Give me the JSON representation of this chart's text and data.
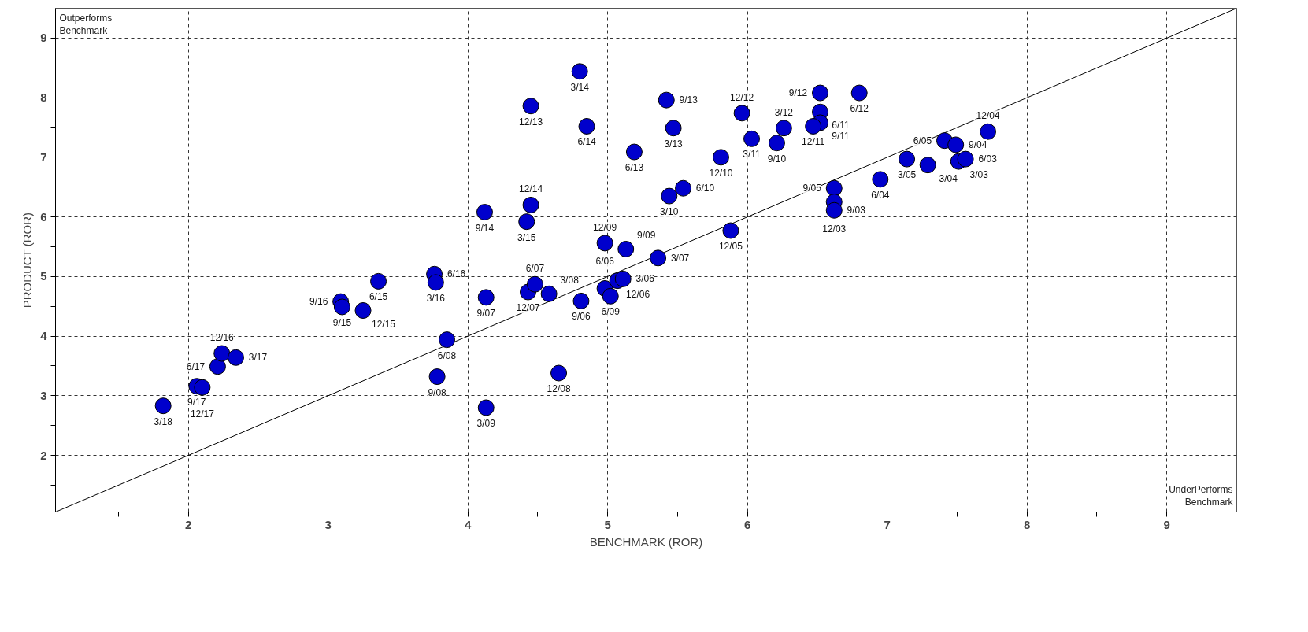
{
  "chart_data": {
    "type": "scatter",
    "xlabel": "BENCHMARK (ROR)",
    "ylabel": "PRODUCT (ROR)",
    "annotations": [
      "Outperforms\nBenchmark",
      "UnderPerforms\nBenchmark",
      {
        "text": "3/18",
        "x": 1.82,
        "y": 2.83
      },
      {
        "text": "9/17",
        "x": 2.06,
        "y": 3.16
      },
      {
        "text": "12/17",
        "x": 2.1,
        "y": 3.14
      },
      {
        "text": "6/17",
        "x": 2.21,
        "y": 3.49
      },
      {
        "text": "12/16",
        "x": 2.24,
        "y": 3.71
      },
      {
        "text": "3/17",
        "x": 2.34,
        "y": 3.64
      },
      {
        "text": "9/16",
        "x": 3.09,
        "y": 4.58
      },
      {
        "text": "9/15",
        "x": 3.1,
        "y": 4.49
      },
      {
        "text": "12/15",
        "x": 3.25,
        "y": 4.43
      },
      {
        "text": "6/15",
        "x": 3.36,
        "y": 4.92
      },
      {
        "text": "6/16",
        "x": 3.76,
        "y": 5.04
      },
      {
        "text": "3/16",
        "x": 3.77,
        "y": 4.9
      },
      {
        "text": "9/07",
        "x": 4.13,
        "y": 4.65
      },
      {
        "text": "12/07",
        "x": 4.43,
        "y": 4.74
      },
      {
        "text": "6/07",
        "x": 4.48,
        "y": 4.87
      },
      {
        "text": "3/08",
        "x": 4.58,
        "y": 4.71
      },
      {
        "text": "9/06",
        "x": 4.81,
        "y": 4.59
      },
      {
        "text": "6/08",
        "x": 3.85,
        "y": 3.94
      },
      {
        "text": "9/08",
        "x": 3.78,
        "y": 3.32
      },
      {
        "text": "12/08",
        "x": 4.65,
        "y": 3.38
      },
      {
        "text": "3/09",
        "x": 4.13,
        "y": 2.8
      },
      {
        "text": "6/06",
        "x": 4.98,
        "y": 4.8
      },
      {
        "text": "6/09",
        "x": 5.02,
        "y": 4.67
      },
      {
        "text": "12/06",
        "x": 5.07,
        "y": 4.93
      },
      {
        "text": "3/06",
        "x": 5.11,
        "y": 4.96
      },
      {
        "text": "3/07",
        "x": 5.36,
        "y": 5.31
      },
      {
        "text": "3/14",
        "x": 4.8,
        "y": 8.44
      },
      {
        "text": "12/13",
        "x": 4.45,
        "y": 7.86
      },
      {
        "text": "6/14",
        "x": 4.85,
        "y": 7.52
      },
      {
        "text": "9/13",
        "x": 5.42,
        "y": 7.96
      },
      {
        "text": "3/13",
        "x": 5.47,
        "y": 7.49
      },
      {
        "text": "6/13",
        "x": 5.19,
        "y": 7.09
      },
      {
        "text": "12/12",
        "x": 5.96,
        "y": 7.74
      },
      {
        "text": "3/11",
        "x": 6.03,
        "y": 7.31
      },
      {
        "text": "3/12",
        "x": 6.26,
        "y": 7.49
      },
      {
        "text": "9/10",
        "x": 6.21,
        "y": 7.24
      },
      {
        "text": "12/10",
        "x": 5.81,
        "y": 7.0
      },
      {
        "text": "6/10",
        "x": 5.54,
        "y": 6.48
      },
      {
        "text": "3/10",
        "x": 5.44,
        "y": 6.35
      },
      {
        "text": "9/14",
        "x": 4.12,
        "y": 6.08
      },
      {
        "text": "12/14",
        "x": 4.45,
        "y": 6.2
      },
      {
        "text": "3/15",
        "x": 4.42,
        "y": 5.92
      },
      {
        "text": "12/05",
        "x": 5.88,
        "y": 5.77
      },
      {
        "text": "12/09",
        "x": 4.98,
        "y": 5.56
      },
      {
        "text": "9/09",
        "x": 5.13,
        "y": 5.46
      },
      {
        "text": "9/12",
        "x": 6.52,
        "y": 8.08
      },
      {
        "text": "6/12",
        "x": 6.8,
        "y": 8.08
      },
      {
        "text": "6/11",
        "x": 6.52,
        "y": 7.76
      },
      {
        "text": "9/11",
        "x": 6.52,
        "y": 7.58
      },
      {
        "text": "12/11",
        "x": 6.47,
        "y": 7.52
      },
      {
        "text": "6/04",
        "x": 6.95,
        "y": 6.63
      },
      {
        "text": "3/05",
        "x": 7.14,
        "y": 6.97
      },
      {
        "text": "3/04",
        "x": 7.29,
        "y": 6.87
      },
      {
        "text": "6/05",
        "x": 7.41,
        "y": 7.28
      },
      {
        "text": "9/04",
        "x": 7.49,
        "y": 7.21
      },
      {
        "text": "12/04",
        "x": 7.72,
        "y": 7.43
      },
      {
        "text": "3/03",
        "x": 7.51,
        "y": 6.93
      },
      {
        "text": "6/03",
        "x": 7.56,
        "y": 6.97
      },
      {
        "text": "9/05",
        "x": 6.62,
        "y": 6.48
      },
      {
        "text": "12/03",
        "x": 6.62,
        "y": 6.25
      },
      {
        "text": "9/03",
        "x": 6.62,
        "y": 6.11
      }
    ],
    "xlim": [
      1.05,
      9.5
    ],
    "ylim": [
      1.05,
      9.5
    ],
    "xticks": [
      {
        "value": 1.5,
        "label": null
      },
      2,
      {
        "value": 2.5,
        "label": null
      },
      3,
      {
        "value": 3.5,
        "label": null
      },
      4,
      {
        "value": 4.5,
        "label": null
      },
      5,
      {
        "value": 5.5,
        "label": null
      },
      6,
      {
        "value": 6.5,
        "label": null
      },
      7,
      {
        "value": 7.5,
        "label": null
      },
      8,
      {
        "value": 8.5,
        "label": null
      },
      9
    ],
    "yticks": [
      {
        "value": 1.5,
        "label": null
      },
      2,
      {
        "value": 2.5,
        "label": null
      },
      3,
      {
        "value": 3.5,
        "label": null
      },
      4,
      {
        "value": 4.5,
        "label": null
      },
      5,
      {
        "value": 5.5,
        "label": null
      },
      6,
      {
        "value": 6.5,
        "label": null
      },
      7,
      {
        "value": 7.5,
        "label": null
      },
      8,
      {
        "value": 8.5,
        "label": null
      },
      9
    ],
    "grid": true,
    "marker": "circle",
    "series": [
      {
        "type": "line",
        "color": "#000000",
        "marker": "none",
        "line_style": "solid",
        "x": [
          1.05,
          9.5
        ],
        "values": [
          1.05,
          9.5
        ]
      },
      {
        "color": "#0000cc",
        "x": [
          1.82,
          2.06,
          2.1,
          2.21,
          2.24,
          2.34,
          3.09,
          3.1,
          3.25,
          3.36,
          3.76,
          3.77,
          4.13,
          4.43,
          4.48,
          4.58,
          4.81,
          3.85,
          3.78,
          4.65,
          4.13,
          4.98,
          5.02,
          5.07,
          5.11,
          5.36,
          4.8,
          4.45,
          4.85,
          5.42,
          5.47,
          5.19,
          5.96,
          6.03,
          6.26,
          6.21,
          5.81,
          5.54,
          5.44,
          4.12,
          4.45,
          4.42,
          5.88,
          4.98,
          5.13,
          6.52,
          6.8,
          6.52,
          6.52,
          6.47,
          6.95,
          7.14,
          7.29,
          7.41,
          7.49,
          7.72,
          7.51,
          7.56,
          6.62,
          6.62,
          6.62
        ],
        "values": [
          2.83,
          3.16,
          3.14,
          3.49,
          3.71,
          3.64,
          4.58,
          4.49,
          4.43,
          4.92,
          5.04,
          4.9,
          4.65,
          4.74,
          4.87,
          4.71,
          4.59,
          3.94,
          3.32,
          3.38,
          2.8,
          4.8,
          4.67,
          4.93,
          4.96,
          5.31,
          8.44,
          7.86,
          7.52,
          7.96,
          7.49,
          7.09,
          7.74,
          7.31,
          7.49,
          7.24,
          7.0,
          6.48,
          6.35,
          6.08,
          6.2,
          5.92,
          5.77,
          5.56,
          5.46,
          8.08,
          8.08,
          7.76,
          7.58,
          7.52,
          6.63,
          6.97,
          6.87,
          7.28,
          7.21,
          7.43,
          6.93,
          6.97,
          6.48,
          6.25,
          6.11
        ]
      }
    ]
  }
}
